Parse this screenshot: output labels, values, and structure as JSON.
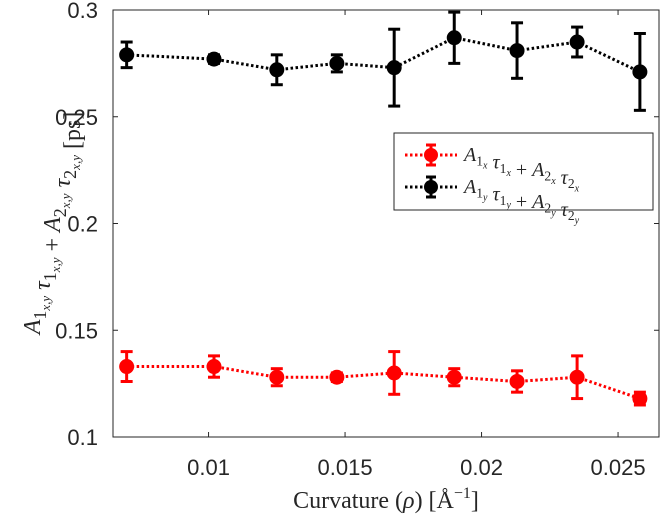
{
  "chart_data": {
    "type": "line",
    "title": "",
    "xlabel": "Curvature (ρ) [Å⁻¹]",
    "ylabel": "A₁ₓ,ᵧ τ₁ₓ,ᵧ + A₂ₓ,ᵧ τ₂ₓ,ᵧ [ps]",
    "xlim": [
      0.0065,
      0.0265
    ],
    "ylim": [
      0.1,
      0.3
    ],
    "xticks": [
      0.01,
      0.015,
      0.02,
      0.025
    ],
    "xtick_labels": [
      "0.01",
      "0.015",
      "0.02",
      "0.025"
    ],
    "yticks": [
      0.1,
      0.15,
      0.2,
      0.25,
      0.3
    ],
    "ytick_labels": [
      "0.1",
      "0.15",
      "0.2",
      "0.25",
      "0.3"
    ],
    "grid": false,
    "legend_position": "top-right",
    "x": [
      0.007,
      0.0102,
      0.0125,
      0.0147,
      0.0168,
      0.019,
      0.0213,
      0.0235,
      0.0258
    ],
    "series": [
      {
        "name": "A1x τ1x + A2x τ2x",
        "legend_main": [
          "A",
          "τ",
          "+",
          "A",
          "τ"
        ],
        "legend_sub1": [
          "1",
          "1",
          "2",
          "2"
        ],
        "legend_sub2": [
          "x",
          "x",
          "x",
          "x"
        ],
        "color": "#ff0000",
        "values": [
          0.133,
          0.133,
          0.128,
          0.128,
          0.13,
          0.128,
          0.126,
          0.128,
          0.118
        ],
        "errors": [
          0.007,
          0.005,
          0.004,
          0.002,
          0.01,
          0.004,
          0.005,
          0.01,
          0.003
        ]
      },
      {
        "name": "A1y τ1y + A2y τ2y",
        "legend_main": [
          "A",
          "τ",
          "+",
          "A",
          "τ"
        ],
        "legend_sub1": [
          "1",
          "1",
          "2",
          "2"
        ],
        "legend_sub2": [
          "y",
          "y",
          "y",
          "y"
        ],
        "color": "#000000",
        "values": [
          0.279,
          0.277,
          0.272,
          0.275,
          0.273,
          0.287,
          0.281,
          0.285,
          0.271
        ],
        "errors": [
          0.006,
          0.002,
          0.007,
          0.004,
          0.018,
          0.012,
          0.013,
          0.007,
          0.018
        ]
      }
    ]
  }
}
